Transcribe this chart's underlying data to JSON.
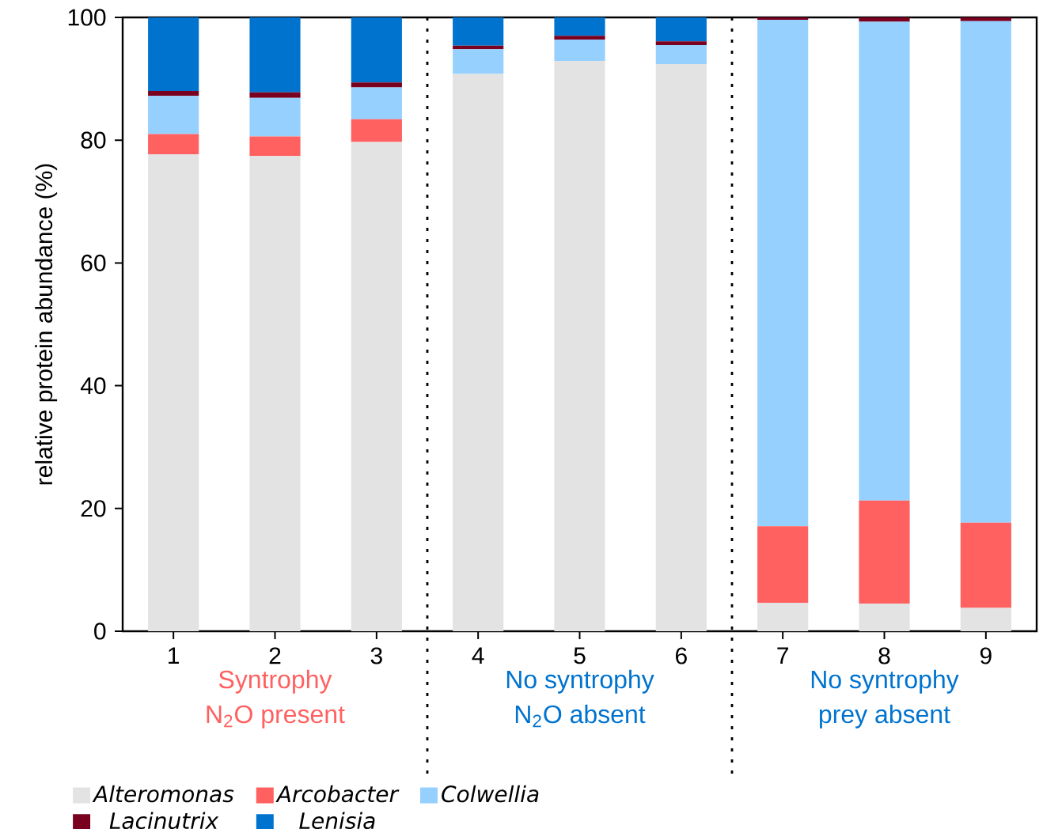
{
  "chart_data": {
    "type": "bar",
    "stacked": true,
    "ylabel": "relative protein abundance (%)",
    "x": [
      1,
      2,
      3,
      4,
      5,
      6,
      7,
      8,
      9
    ],
    "xlim": [
      0.5,
      9.5
    ],
    "xticks": [
      1,
      2,
      3,
      4,
      5,
      6,
      7,
      8,
      9
    ],
    "ylim": [
      0,
      100
    ],
    "yticks": [
      0,
      20,
      40,
      60,
      80,
      100
    ],
    "grid": false,
    "legend": "bottom",
    "series": [
      {
        "name": "Alteromonas",
        "color": "#e3e3e3",
        "values": [
          77.7,
          77.4,
          79.7,
          90.8,
          92.9,
          92.4,
          4.6,
          4.5,
          3.8
        ]
      },
      {
        "name": "Arcobacter",
        "color": "#ff6060",
        "values": [
          3.3,
          3.2,
          3.7,
          0,
          0,
          0,
          12.5,
          16.8,
          13.9
        ]
      },
      {
        "name": "Colwellia",
        "color": "#96d0ff",
        "values": [
          6.2,
          6.3,
          5.2,
          4.0,
          3.5,
          3.1,
          82.5,
          78.0,
          81.7
        ]
      },
      {
        "name": "Lacinutrix",
        "color": "#7a0020",
        "values": [
          0.8,
          0.9,
          0.8,
          0.6,
          0.6,
          0.6,
          0.4,
          0.7,
          0.6
        ]
      },
      {
        "name": "Lenisia",
        "color": "#0073cf",
        "values": [
          12.0,
          12.2,
          10.6,
          4.6,
          3.0,
          3.9,
          0,
          0,
          0
        ]
      }
    ],
    "ref_lines": [
      {
        "axis": "x",
        "value": 3.5,
        "line_style": "dotted"
      },
      {
        "axis": "x",
        "value": 6.5,
        "line_style": "dotted"
      }
    ],
    "annotations": [
      "Syntrophy",
      "N$_{2}$O present",
      "No syntrophy",
      "N$_{2}$O absent",
      "No syntrophy",
      "prey absent"
    ]
  }
}
